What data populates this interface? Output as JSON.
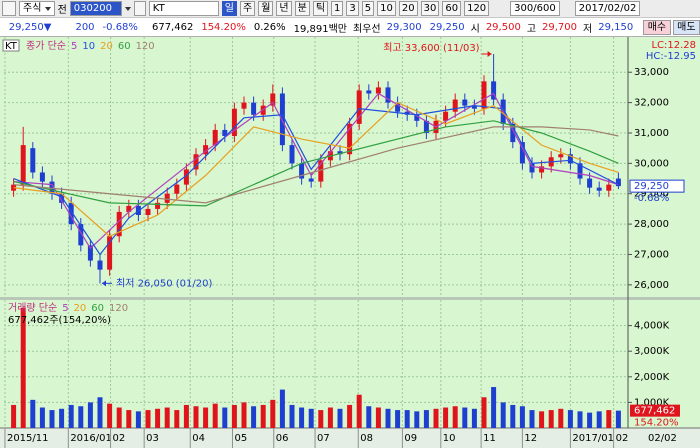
{
  "toolbar": {
    "market": "주식",
    "scope": "전",
    "code": "030200",
    "name": "KT",
    "periods": [
      "일",
      "주",
      "월",
      "년",
      "분",
      "틱"
    ],
    "intervals": [
      "1",
      "3",
      "5",
      "10",
      "20",
      "30",
      "60",
      "120"
    ],
    "count": "300/600",
    "date": "2017/02/02"
  },
  "quote": {
    "price": "29,250▼",
    "change": "200",
    "change_rate": "-0.68%",
    "volume": "677,462",
    "volume_ratio": "154.20%",
    "turnover_rate": "0.26%",
    "amount": "19,891백만",
    "best_label": "최우선",
    "best_ask": "29,300",
    "best_bid": "29,250",
    "open_label": "시",
    "open": "29,500",
    "high_label": "고",
    "high": "29,700",
    "low_label": "저",
    "low": "29,150",
    "buy": "매수",
    "sell": "매도"
  },
  "chart_data": [
    {
      "type": "candlestick",
      "legend_tag": "KT",
      "legend_label": "종가 단순",
      "up_color": "#e0141c",
      "down_color": "#1f3fd0",
      "open": [
        29100,
        29300,
        30500,
        29700,
        29400,
        29000,
        28700,
        28000,
        27300,
        26800,
        26500,
        27600,
        28400,
        28600,
        28300,
        28500,
        28700,
        29000,
        29300,
        29800,
        30300,
        30600,
        31100,
        30900,
        31800,
        32000,
        31600,
        31900,
        32300,
        30600,
        30000,
        29500,
        29400,
        30100,
        30400,
        30300,
        31300,
        32400,
        32300,
        32500,
        32000,
        31700,
        31600,
        31400,
        31000,
        31400,
        31700,
        32100,
        31900,
        31800,
        32700,
        32100,
        31300,
        30700,
        30000,
        29700,
        29900,
        30200,
        30300,
        30000,
        29500,
        29200,
        29100,
        29500
      ],
      "high": [
        29500,
        31200,
        30700,
        29900,
        29600,
        29200,
        28900,
        28200,
        27500,
        27000,
        27800,
        28600,
        28800,
        28800,
        28700,
        28900,
        29200,
        29500,
        30000,
        30500,
        30800,
        31300,
        31300,
        32000,
        32200,
        32200,
        32100,
        32600,
        32500,
        30800,
        30200,
        29700,
        30300,
        30600,
        30600,
        31500,
        32600,
        32600,
        32700,
        32700,
        32200,
        31900,
        31800,
        31600,
        31600,
        31900,
        32300,
        32300,
        32100,
        32900,
        33600,
        32300,
        31500,
        30900,
        30200,
        30100,
        30400,
        30500,
        30500,
        30200,
        29700,
        29400,
        29500,
        29700
      ],
      "low": [
        28900,
        29100,
        29500,
        29200,
        28800,
        28500,
        27800,
        27100,
        26600,
        26050,
        26300,
        27400,
        28200,
        28100,
        28100,
        28300,
        28500,
        28800,
        29100,
        29600,
        30100,
        30400,
        30700,
        30700,
        31600,
        31400,
        31400,
        31700,
        30400,
        29800,
        29300,
        29200,
        29200,
        29900,
        30100,
        30100,
        31100,
        32100,
        32100,
        31800,
        31500,
        31400,
        31200,
        30800,
        30800,
        31200,
        31500,
        31700,
        31600,
        31600,
        31900,
        31100,
        30500,
        29800,
        29500,
        29500,
        29700,
        30000,
        29800,
        29300,
        29000,
        28900,
        28900,
        29150
      ],
      "close": [
        29300,
        30600,
        29700,
        29400,
        29000,
        28700,
        28000,
        27300,
        26800,
        26500,
        27600,
        28400,
        28600,
        28300,
        28500,
        28700,
        29000,
        29300,
        29800,
        30300,
        30600,
        31100,
        30900,
        31800,
        32000,
        31600,
        31900,
        32300,
        30600,
        30000,
        29500,
        29400,
        30100,
        30400,
        30300,
        31300,
        32400,
        32300,
        32500,
        32000,
        31700,
        31600,
        31400,
        31000,
        31400,
        31700,
        32100,
        31900,
        31800,
        32700,
        32100,
        31300,
        30700,
        30000,
        29700,
        29900,
        30200,
        30300,
        30000,
        29500,
        29200,
        29100,
        29300,
        29250
      ],
      "ma_series": [
        {
          "name": "5",
          "color": "#b040c0",
          "x": [
            0,
            4,
            8,
            12,
            20,
            27,
            31,
            38,
            44,
            50,
            54,
            60,
            63
          ],
          "values": [
            29400,
            29300,
            27200,
            28400,
            30400,
            32000,
            29600,
            32300,
            31200,
            32300,
            29900,
            29600,
            29300
          ]
        },
        {
          "name": "10",
          "color": "#2050e0",
          "x": [
            0,
            5,
            9,
            12,
            18,
            24,
            28,
            31,
            36,
            42,
            48,
            51,
            54,
            58,
            63
          ],
          "values": [
            29500,
            28900,
            27000,
            28200,
            29600,
            31500,
            31600,
            29800,
            31800,
            31600,
            31900,
            31800,
            30000,
            30100,
            29300
          ]
        },
        {
          "name": "20",
          "color": "#e8a020",
          "x": [
            0,
            5,
            10,
            15,
            20,
            25,
            30,
            35,
            40,
            45,
            50,
            55,
            60,
            63
          ],
          "values": [
            29200,
            29000,
            27600,
            28300,
            29600,
            31200,
            30800,
            30500,
            32000,
            31300,
            31900,
            30600,
            30000,
            29700
          ]
        },
        {
          "name": "60",
          "color": "#30a040",
          "x": [
            0,
            10,
            20,
            30,
            40,
            45,
            50,
            55,
            60,
            63
          ],
          "values": [
            29400,
            28700,
            28600,
            30000,
            30800,
            31200,
            31400,
            31000,
            30400,
            30000
          ]
        },
        {
          "name": "120",
          "color": "#a08070",
          "x": [
            0,
            10,
            20,
            30,
            40,
            50,
            55,
            60,
            63
          ],
          "values": [
            29300,
            29000,
            28700,
            29600,
            30500,
            31200,
            31200,
            31100,
            30900
          ]
        }
      ],
      "xlim": [
        -1,
        64
      ],
      "xticks": [
        {
          "value": -0.9,
          "label": "2015/11"
        },
        {
          "value": 5.7,
          "label": "2016/01"
        },
        {
          "value": 10.1,
          "label": "02"
        },
        {
          "value": 13.6,
          "label": "03"
        },
        {
          "value": 18.4,
          "label": "04"
        },
        {
          "value": 22.8,
          "label": "05"
        },
        {
          "value": 27.1,
          "label": "06"
        },
        {
          "value": 31.4,
          "label": "07"
        },
        {
          "value": 35.9,
          "label": "08"
        },
        {
          "value": 40.5,
          "label": "09"
        },
        {
          "value": 44.5,
          "label": "10"
        },
        {
          "value": 48.7,
          "label": "11"
        },
        {
          "value": 53,
          "label": "12"
        },
        {
          "value": 58,
          "label": "2017/01"
        },
        {
          "value": 62.5,
          "label": "02"
        }
      ],
      "ylim": [
        25600,
        34160
      ],
      "yticks": [
        {
          "value": 26000,
          "label": "26,000"
        },
        {
          "value": 27000,
          "label": "27,000"
        },
        {
          "value": 28000,
          "label": "28,000"
        },
        {
          "value": 29000,
          "label": "29,000"
        },
        {
          "value": 30000,
          "label": "30,000"
        },
        {
          "value": 31000,
          "label": "31,000"
        },
        {
          "value": 32000,
          "label": "32,000"
        },
        {
          "value": 33000,
          "label": "33,000"
        }
      ],
      "grid": true,
      "annotations": [
        {
          "text": "최고 33,600 (11/03)",
          "x": 50,
          "y": 33600,
          "side": "left",
          "color": "#e0141c"
        },
        {
          "text": "최저 26,050 (01/20)",
          "x": 9,
          "y": 26050,
          "side": "right",
          "color": "#1f3fd0"
        }
      ],
      "right_labels": [
        {
          "text": "LC:12.28",
          "color": "#e0141c"
        },
        {
          "text": "HC:-12.95",
          "color": "#1f3fd0"
        }
      ],
      "last_price_label": "29,250",
      "last_change_label": "-0.68%"
    },
    {
      "type": "bar",
      "legend_label": "거래량 단순",
      "ma_legend": [
        {
          "name": "5",
          "color": "#b040c0"
        },
        {
          "name": "20",
          "color": "#e8a020"
        },
        {
          "name": "60",
          "color": "#30a040"
        },
        {
          "name": "120",
          "color": "#a08070"
        }
      ],
      "annotation": "677,462주(154,20%)",
      "values": [
        900000,
        4700000,
        1100000,
        800000,
        700000,
        750000,
        900000,
        850000,
        1000000,
        1200000,
        950000,
        800000,
        700000,
        650000,
        700000,
        750000,
        800000,
        700000,
        900000,
        850000,
        800000,
        950000,
        800000,
        900000,
        1000000,
        850000,
        900000,
        1100000,
        1500000,
        900000,
        800000,
        750000,
        700000,
        800000,
        750000,
        900000,
        1300000,
        850000,
        800000,
        750000,
        700000,
        700000,
        650000,
        700000,
        750000,
        800000,
        850000,
        800000,
        750000,
        1200000,
        1600000,
        1000000,
        900000,
        850000,
        700000,
        650000,
        700000,
        750000,
        700000,
        650000,
        600000,
        650000,
        700000,
        677462
      ],
      "ylim": [
        0,
        5000000
      ],
      "yticks": [
        {
          "value": 1000000,
          "label": "1,000K"
        },
        {
          "value": 2000000,
          "label": "2,000K"
        },
        {
          "value": 3000000,
          "label": "3,000K"
        },
        {
          "value": 4000000,
          "label": "4,000K"
        }
      ],
      "last_volume_label": "677,462",
      "last_ratio_label": "154.20%",
      "x_last_label": "02/02"
    }
  ]
}
